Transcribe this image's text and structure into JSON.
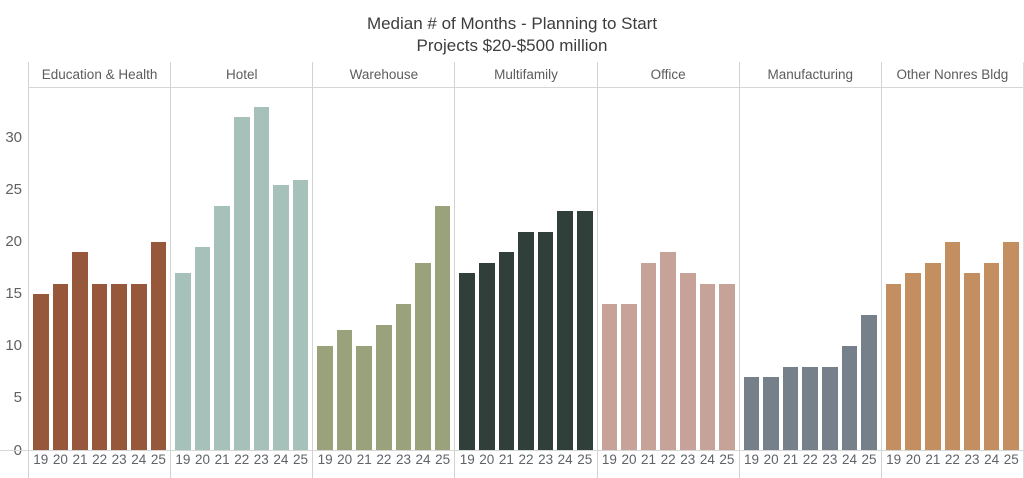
{
  "title": {
    "line1": "Median # of Months - Planning to Start",
    "line2": "Projects $20-$500 million"
  },
  "chart_data": {
    "type": "bar",
    "title": "Median # of Months - Planning to Start Projects $20-$500 million",
    "xlabel": "",
    "ylabel": "",
    "categories": [
      "19",
      "20",
      "21",
      "22",
      "23",
      "24",
      "25"
    ],
    "yticks": [
      0,
      5,
      10,
      15,
      20,
      25,
      30
    ],
    "ylim": [
      0,
      34.8
    ],
    "grid": false,
    "legend": "none",
    "facet_layout": "columns",
    "panels": [
      {
        "label": "Education & Health",
        "color": "#96573B",
        "values": [
          15,
          16,
          19,
          16,
          16,
          16,
          20
        ]
      },
      {
        "label": "Hotel",
        "color": "#A6C0BA",
        "values": [
          17,
          19.5,
          23.5,
          32,
          33,
          25.5,
          26
        ]
      },
      {
        "label": "Warehouse",
        "color": "#9AA27C",
        "values": [
          10,
          11.5,
          10,
          12,
          14,
          18,
          23.5
        ]
      },
      {
        "label": "Multifamily",
        "color": "#313F3A",
        "values": [
          17,
          18,
          19,
          21,
          21,
          23,
          23
        ]
      },
      {
        "label": "Office",
        "color": "#C7A298",
        "values": [
          14,
          14,
          18,
          19,
          17,
          16,
          16
        ]
      },
      {
        "label": "Manufacturing",
        "color": "#75808B",
        "values": [
          7,
          7,
          8,
          8,
          8,
          10,
          13
        ]
      },
      {
        "label": "Other Nonres Bldg",
        "color": "#C38F61",
        "values": [
          16,
          17,
          18,
          20,
          17,
          18,
          20
        ]
      }
    ]
  },
  "colors": {
    "background": "#ffffff",
    "title_text": "#3d3d3d",
    "header_text": "#5c5c5c",
    "tick_text": "#616161",
    "separator": "#d2d2d2",
    "axis_line": "#d6d6d6"
  }
}
